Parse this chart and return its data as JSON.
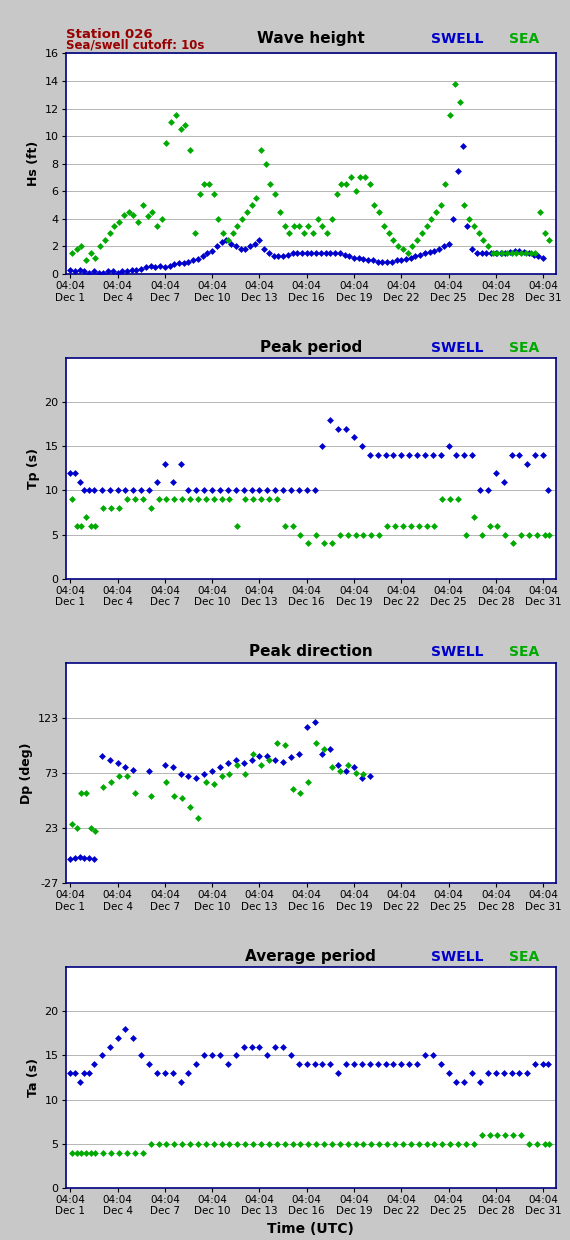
{
  "title_station": "Station 026",
  "title_cutoff": "Sea/swell cutoff: 10s",
  "bg_color": "#c8c8c8",
  "plot_bg": "#ffffff",
  "swell_color": "#0000cc",
  "sea_color": "#00aa00",
  "border_color": "#000080",
  "panel1_title": "Wave height",
  "panel1_ylabel": "Hs (ft)",
  "panel1_ylim": [
    0,
    16
  ],
  "panel1_yticks": [
    0,
    2,
    4,
    6,
    8,
    10,
    12,
    14,
    16
  ],
  "panel1_swell_x": [
    0.0,
    0.3,
    0.6,
    0.9,
    1.2,
    1.5,
    1.8,
    2.1,
    2.4,
    2.7,
    3.0,
    3.3,
    3.6,
    3.9,
    4.2,
    4.5,
    4.8,
    5.1,
    5.4,
    5.7,
    6.0,
    6.3,
    6.6,
    6.9,
    7.2,
    7.5,
    7.8,
    8.1,
    8.4,
    8.7,
    9.0,
    9.3,
    9.6,
    9.9,
    10.2,
    10.5,
    10.8,
    11.1,
    11.4,
    11.7,
    12.0,
    12.3,
    12.6,
    12.9,
    13.2,
    13.5,
    13.8,
    14.1,
    14.4,
    14.7,
    15.0,
    15.3,
    15.6,
    15.9,
    16.2,
    16.5,
    16.8,
    17.1,
    17.4,
    17.7,
    18.0,
    18.3,
    18.6,
    18.9,
    19.2,
    19.5,
    19.8,
    20.1,
    20.4,
    20.7,
    21.0,
    21.3,
    21.6,
    21.9,
    22.2,
    22.5,
    22.8,
    23.1,
    23.4,
    23.7,
    24.0,
    24.3,
    24.6,
    24.9,
    25.2,
    25.5,
    25.8,
    26.1,
    26.4,
    26.7,
    27.0,
    27.3,
    27.6,
    27.9,
    28.2,
    28.5,
    28.8,
    29.1,
    29.4,
    29.7,
    30.0
  ],
  "panel1_swell_y": [
    0.3,
    0.2,
    0.3,
    0.2,
    0.1,
    0.2,
    0.1,
    0.1,
    0.2,
    0.2,
    0.1,
    0.2,
    0.2,
    0.3,
    0.3,
    0.4,
    0.5,
    0.6,
    0.5,
    0.6,
    0.5,
    0.6,
    0.7,
    0.8,
    0.8,
    0.9,
    1.0,
    1.1,
    1.3,
    1.5,
    1.7,
    2.0,
    2.3,
    2.5,
    2.2,
    2.0,
    1.8,
    1.8,
    2.0,
    2.2,
    2.5,
    1.8,
    1.5,
    1.3,
    1.3,
    1.3,
    1.4,
    1.5,
    1.5,
    1.5,
    1.5,
    1.5,
    1.5,
    1.5,
    1.5,
    1.5,
    1.5,
    1.5,
    1.4,
    1.3,
    1.2,
    1.2,
    1.1,
    1.0,
    1.0,
    0.9,
    0.9,
    0.9,
    0.9,
    1.0,
    1.0,
    1.1,
    1.2,
    1.3,
    1.4,
    1.5,
    1.6,
    1.7,
    1.8,
    2.0,
    2.2,
    4.0,
    7.5,
    9.3,
    3.5,
    1.8,
    1.5,
    1.5,
    1.5,
    1.5,
    1.5,
    1.5,
    1.5,
    1.6,
    1.7,
    1.7,
    1.6,
    1.5,
    1.4,
    1.3,
    1.2
  ],
  "panel1_sea_x": [
    0.1,
    0.4,
    0.7,
    1.0,
    1.3,
    1.6,
    1.9,
    2.2,
    2.5,
    2.8,
    3.1,
    3.4,
    3.7,
    4.0,
    4.3,
    4.6,
    4.9,
    5.2,
    5.5,
    5.8,
    6.1,
    6.4,
    6.7,
    7.0,
    7.3,
    7.6,
    7.9,
    8.2,
    8.5,
    8.8,
    9.1,
    9.4,
    9.7,
    10.0,
    10.3,
    10.6,
    10.9,
    11.2,
    11.5,
    11.8,
    12.1,
    12.4,
    12.7,
    13.0,
    13.3,
    13.6,
    13.9,
    14.2,
    14.5,
    14.8,
    15.1,
    15.4,
    15.7,
    16.0,
    16.3,
    16.6,
    16.9,
    17.2,
    17.5,
    17.8,
    18.1,
    18.4,
    18.7,
    19.0,
    19.3,
    19.6,
    19.9,
    20.2,
    20.5,
    20.8,
    21.1,
    21.4,
    21.7,
    22.0,
    22.3,
    22.6,
    22.9,
    23.2,
    23.5,
    23.8,
    24.1,
    24.4,
    24.7,
    25.0,
    25.3,
    25.6,
    25.9,
    26.2,
    26.5,
    26.8,
    27.1,
    27.4,
    27.7,
    28.0,
    28.3,
    28.6,
    28.9,
    29.2,
    29.5,
    29.8,
    30.1,
    30.4
  ],
  "panel1_sea_y": [
    1.5,
    1.8,
    2.0,
    1.0,
    1.5,
    1.2,
    2.0,
    2.5,
    3.0,
    3.5,
    3.8,
    4.3,
    4.5,
    4.3,
    3.8,
    5.0,
    4.2,
    4.5,
    3.5,
    4.0,
    9.5,
    11.0,
    11.5,
    10.5,
    10.8,
    9.0,
    3.0,
    5.8,
    6.5,
    6.5,
    5.8,
    4.0,
    3.0,
    2.5,
    3.0,
    3.5,
    4.0,
    4.5,
    5.0,
    5.5,
    9.0,
    8.0,
    6.5,
    5.8,
    4.5,
    3.5,
    3.0,
    3.5,
    3.5,
    3.0,
    3.5,
    3.0,
    4.0,
    3.5,
    3.0,
    4.0,
    5.8,
    6.5,
    6.5,
    7.0,
    6.0,
    7.0,
    7.0,
    6.5,
    5.0,
    4.5,
    3.5,
    3.0,
    2.5,
    2.0,
    1.8,
    1.5,
    2.0,
    2.5,
    3.0,
    3.5,
    4.0,
    4.5,
    5.0,
    6.5,
    11.5,
    13.8,
    12.5,
    5.0,
    4.0,
    3.5,
    3.0,
    2.5,
    2.0,
    1.5,
    1.5,
    1.5,
    1.5,
    1.5,
    1.5,
    1.5,
    1.5,
    1.5,
    1.5,
    4.5,
    3.0,
    2.5
  ],
  "panel2_title": "Peak period",
  "panel2_ylabel": "Tp (s)",
  "panel2_ylim": [
    0,
    25
  ],
  "panel2_yticks": [
    0,
    5,
    10,
    15,
    20
  ],
  "panel2_swell_x": [
    0.0,
    0.3,
    0.6,
    0.9,
    1.2,
    1.5,
    2.0,
    2.5,
    3.0,
    3.5,
    4.0,
    4.5,
    5.0,
    5.5,
    6.0,
    6.5,
    7.0,
    7.5,
    8.0,
    8.5,
    9.0,
    9.5,
    10.0,
    10.5,
    11.0,
    11.5,
    12.0,
    12.5,
    13.0,
    13.5,
    14.0,
    14.5,
    15.0,
    15.5,
    16.0,
    16.5,
    17.0,
    17.5,
    18.0,
    18.5,
    19.0,
    19.5,
    20.0,
    20.5,
    21.0,
    21.5,
    22.0,
    22.5,
    23.0,
    23.5,
    24.0,
    24.5,
    25.0,
    25.5,
    26.0,
    26.5,
    27.0,
    27.5,
    28.0,
    28.5,
    29.0,
    29.5,
    30.0,
    30.3
  ],
  "panel2_swell_y": [
    12,
    12,
    11,
    10,
    10,
    10,
    10,
    10,
    10,
    10,
    10,
    10,
    10,
    11,
    13,
    11,
    13,
    10,
    10,
    10,
    10,
    10,
    10,
    10,
    10,
    10,
    10,
    10,
    10,
    10,
    10,
    10,
    10,
    10,
    15,
    18,
    17,
    17,
    16,
    15,
    14,
    14,
    14,
    14,
    14,
    14,
    14,
    14,
    14,
    14,
    15,
    14,
    14,
    14,
    10,
    10,
    12,
    11,
    14,
    14,
    13,
    14,
    14,
    10
  ],
  "panel2_sea_x": [
    0.1,
    0.4,
    0.7,
    1.0,
    1.3,
    1.6,
    2.1,
    2.6,
    3.1,
    3.6,
    4.1,
    4.6,
    5.1,
    5.6,
    6.1,
    6.6,
    7.1,
    7.6,
    8.1,
    8.6,
    9.1,
    9.6,
    10.1,
    10.6,
    11.1,
    11.6,
    12.1,
    12.6,
    13.1,
    13.6,
    14.1,
    14.6,
    15.1,
    15.6,
    16.1,
    16.6,
    17.1,
    17.6,
    18.1,
    18.6,
    19.1,
    19.6,
    20.1,
    20.6,
    21.1,
    21.6,
    22.1,
    22.6,
    23.1,
    23.6,
    24.1,
    24.6,
    25.1,
    25.6,
    26.1,
    26.6,
    27.1,
    27.6,
    28.1,
    28.6,
    29.1,
    29.6,
    30.1,
    30.4
  ],
  "panel2_sea_y": [
    9,
    6,
    6,
    7,
    6,
    6,
    8,
    8,
    8,
    9,
    9,
    9,
    8,
    9,
    9,
    9,
    9,
    9,
    9,
    9,
    9,
    9,
    9,
    6,
    9,
    9,
    9,
    9,
    9,
    6,
    6,
    5,
    4,
    5,
    4,
    4,
    5,
    5,
    5,
    5,
    5,
    5,
    6,
    6,
    6,
    6,
    6,
    6,
    6,
    9,
    9,
    9,
    5,
    7,
    5,
    6,
    6,
    5,
    4,
    5,
    5,
    5,
    5,
    5
  ],
  "panel3_title": "Peak direction",
  "panel3_ylabel": "Dp (deg)",
  "panel3_ylim": [
    -27,
    173
  ],
  "panel3_yticks": [
    -27,
    23,
    73,
    123
  ],
  "panel3_swell_x": [
    0.0,
    0.3,
    0.6,
    0.9,
    1.2,
    1.5,
    2.0,
    2.5,
    3.0,
    3.5,
    4.0,
    5.0,
    6.0,
    6.5,
    7.0,
    7.5,
    8.0,
    8.5,
    9.0,
    9.5,
    10.0,
    10.5,
    11.0,
    11.5,
    12.0,
    12.5,
    13.0,
    13.5,
    14.0,
    14.5,
    15.0,
    15.5,
    16.0,
    16.5,
    17.0,
    17.5,
    18.0,
    18.5,
    19.0
  ],
  "panel3_swell_y": [
    -5,
    -4,
    -3,
    -4,
    -4,
    -5,
    88,
    85,
    82,
    78,
    76,
    75,
    80,
    78,
    72,
    70,
    68,
    72,
    75,
    78,
    82,
    85,
    82,
    85,
    88,
    88,
    85,
    83,
    87,
    90,
    115,
    119,
    90,
    95,
    80,
    75,
    78,
    68,
    70
  ],
  "panel3_sea_x": [
    0.1,
    0.4,
    0.7,
    1.0,
    1.3,
    1.6,
    2.1,
    2.6,
    3.1,
    3.6,
    4.1,
    5.1,
    6.1,
    6.6,
    7.1,
    7.6,
    8.1,
    8.6,
    9.1,
    9.6,
    10.1,
    10.6,
    11.1,
    11.6,
    12.1,
    12.6,
    13.1,
    13.6,
    14.1,
    14.6,
    15.1,
    15.6,
    16.1,
    16.6,
    17.1,
    17.6,
    18.1,
    18.6
  ],
  "panel3_sea_y": [
    27,
    23,
    55,
    55,
    23,
    20,
    60,
    65,
    70,
    70,
    55,
    52,
    65,
    52,
    50,
    42,
    32,
    65,
    63,
    70,
    72,
    80,
    72,
    90,
    80,
    85,
    100,
    98,
    58,
    55,
    65,
    100,
    95,
    78,
    75,
    80,
    73,
    72
  ],
  "panel4_title": "Average period",
  "panel4_ylabel": "Ta (s)",
  "panel4_ylim": [
    0,
    25
  ],
  "panel4_yticks": [
    0,
    5,
    10,
    15,
    20
  ],
  "panel4_swell_x": [
    0.0,
    0.3,
    0.6,
    0.9,
    1.2,
    1.5,
    2.0,
    2.5,
    3.0,
    3.5,
    4.0,
    4.5,
    5.0,
    5.5,
    6.0,
    6.5,
    7.0,
    7.5,
    8.0,
    8.5,
    9.0,
    9.5,
    10.0,
    10.5,
    11.0,
    11.5,
    12.0,
    12.5,
    13.0,
    13.5,
    14.0,
    14.5,
    15.0,
    15.5,
    16.0,
    16.5,
    17.0,
    17.5,
    18.0,
    18.5,
    19.0,
    19.5,
    20.0,
    20.5,
    21.0,
    21.5,
    22.0,
    22.5,
    23.0,
    23.5,
    24.0,
    24.5,
    25.0,
    25.5,
    26.0,
    26.5,
    27.0,
    27.5,
    28.0,
    28.5,
    29.0,
    29.5,
    30.0,
    30.3
  ],
  "panel4_swell_y": [
    13,
    13,
    12,
    13,
    13,
    14,
    15,
    16,
    17,
    18,
    17,
    15,
    14,
    13,
    13,
    13,
    12,
    13,
    14,
    15,
    15,
    15,
    14,
    15,
    16,
    16,
    16,
    15,
    16,
    16,
    15,
    14,
    14,
    14,
    14,
    14,
    13,
    14,
    14,
    14,
    14,
    14,
    14,
    14,
    14,
    14,
    14,
    15,
    15,
    14,
    13,
    12,
    12,
    13,
    12,
    13,
    13,
    13,
    13,
    13,
    13,
    14,
    14,
    14
  ],
  "panel4_sea_x": [
    0.1,
    0.4,
    0.7,
    1.0,
    1.3,
    1.6,
    2.1,
    2.6,
    3.1,
    3.6,
    4.1,
    4.6,
    5.1,
    5.6,
    6.1,
    6.6,
    7.1,
    7.6,
    8.1,
    8.6,
    9.1,
    9.6,
    10.1,
    10.6,
    11.1,
    11.6,
    12.1,
    12.6,
    13.1,
    13.6,
    14.1,
    14.6,
    15.1,
    15.6,
    16.1,
    16.6,
    17.1,
    17.6,
    18.1,
    18.6,
    19.1,
    19.6,
    20.1,
    20.6,
    21.1,
    21.6,
    22.1,
    22.6,
    23.1,
    23.6,
    24.1,
    24.6,
    25.1,
    25.6,
    26.1,
    26.6,
    27.1,
    27.6,
    28.1,
    28.6,
    29.1,
    29.6,
    30.1,
    30.4
  ],
  "panel4_sea_y": [
    4,
    4,
    4,
    4,
    4,
    4,
    4,
    4,
    4,
    4,
    4,
    4,
    5,
    5,
    5,
    5,
    5,
    5,
    5,
    5,
    5,
    5,
    5,
    5,
    5,
    5,
    5,
    5,
    5,
    5,
    5,
    5,
    5,
    5,
    5,
    5,
    5,
    5,
    5,
    5,
    5,
    5,
    5,
    5,
    5,
    5,
    5,
    5,
    5,
    5,
    5,
    5,
    5,
    5,
    6,
    6,
    6,
    6,
    6,
    6,
    5,
    5,
    5,
    5
  ],
  "xtick_positions": [
    0,
    3,
    6,
    9,
    12,
    15,
    18,
    21,
    24,
    27,
    30
  ],
  "xtick_labels_top": [
    "04:04\nDec 1",
    "04:04\nDec 4",
    "04:04\nDec 7",
    "04:04\nDec 10",
    "04:04\nDec 13",
    "04:04\nDec 16",
    "04:04\nDec 19",
    "04:04\nDec 22",
    "04:04\nDec 25",
    "04:04\nDec 28",
    "04:04\nDec 31"
  ],
  "xlabel": "Time (UTC)",
  "marker": "D",
  "markersize": 3.5
}
